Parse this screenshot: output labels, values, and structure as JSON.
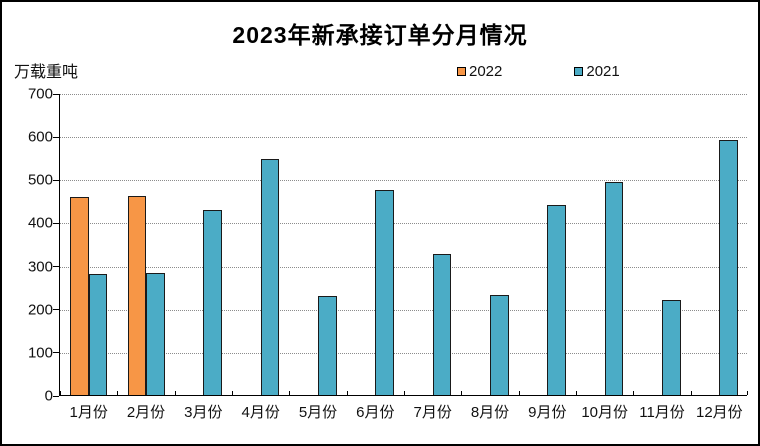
{
  "title": "2023年新承接订单分月情况",
  "unit_label": "万载重吨",
  "legend": [
    {
      "label": "2022",
      "color": "#F79646"
    },
    {
      "label": "2021",
      "color": "#4BACC6"
    }
  ],
  "colors": {
    "orange_series": "#F79646",
    "teal_series": "#4BACC6",
    "bar_border": "#1a1a1a",
    "gridline": "#8c8c8c",
    "text": "#111111"
  },
  "chart_data": {
    "type": "bar",
    "title": "2023年新承接订单分月情况",
    "ylabel": "万载重吨",
    "xlabel": "",
    "ylim": [
      0,
      700
    ],
    "ytick_step": 100,
    "yticks": [
      0,
      100,
      200,
      300,
      400,
      500,
      600,
      700
    ],
    "grid": true,
    "legend_position": "top",
    "categories": [
      "1月份",
      "2月份",
      "3月份",
      "4月份",
      "5月份",
      "6月份",
      "7月份",
      "8月份",
      "9月份",
      "10月份",
      "11月份",
      "12月份"
    ],
    "series": [
      {
        "name": "2022",
        "color": "#F79646",
        "values": [
          460,
          462,
          null,
          null,
          null,
          null,
          null,
          null,
          null,
          null,
          null,
          null
        ]
      },
      {
        "name": "2021",
        "color": "#4BACC6",
        "values": [
          280,
          282,
          428,
          547,
          230,
          475,
          326,
          232,
          440,
          493,
          221,
          590
        ]
      }
    ]
  }
}
